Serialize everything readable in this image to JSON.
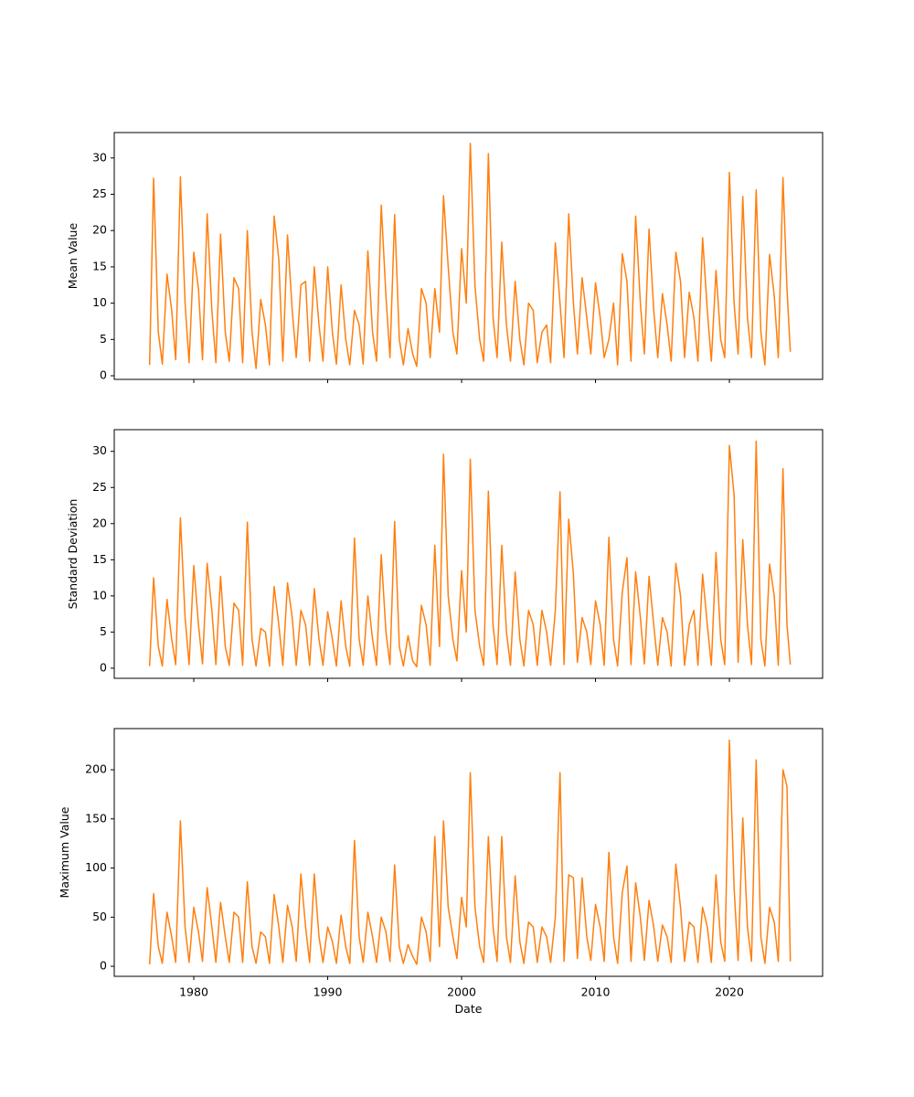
{
  "chart_data": [
    {
      "type": "line",
      "ylabel": "Mean Value",
      "color": "#ff7f0e",
      "xlim": [
        1974.06,
        2026.96
      ],
      "xticks": [
        1980,
        1990,
        2000,
        2010,
        2020
      ],
      "ylim": [
        -0.5,
        33.5
      ],
      "yticks": [
        0,
        5,
        10,
        15,
        20,
        25,
        30
      ],
      "x": [
        1976.7,
        1977,
        1977.35,
        1977.65,
        1978,
        1978.35,
        1978.65,
        1979,
        1979.35,
        1979.65,
        1980,
        1980.35,
        1980.65,
        1981,
        1981.35,
        1981.65,
        1982,
        1982.35,
        1982.65,
        1983,
        1983.35,
        1983.65,
        1984,
        1984.35,
        1984.65,
        1985,
        1985.35,
        1985.65,
        1986,
        1986.35,
        1986.65,
        1987,
        1987.35,
        1987.65,
        1988,
        1988.35,
        1988.65,
        1989,
        1989.35,
        1989.65,
        1990,
        1990.35,
        1990.65,
        1991,
        1991.35,
        1991.65,
        1992,
        1992.35,
        1992.65,
        1993,
        1993.35,
        1993.65,
        1994,
        1994.35,
        1994.65,
        1995,
        1995.35,
        1995.65,
        1996,
        1996.35,
        1996.65,
        1997,
        1997.35,
        1997.65,
        1998,
        1998.35,
        1998.65,
        1999,
        1999.35,
        1999.65,
        2000,
        2000.35,
        2000.65,
        2001,
        2001.35,
        2001.65,
        2002,
        2002.35,
        2002.65,
        2003,
        2003.35,
        2003.65,
        2004,
        2004.35,
        2004.65,
        2005,
        2005.35,
        2005.65,
        2006,
        2006.35,
        2006.65,
        2007,
        2007.35,
        2007.65,
        2008,
        2008.35,
        2008.65,
        2009,
        2009.35,
        2009.65,
        2010,
        2010.35,
        2010.65,
        2011,
        2011.35,
        2011.65,
        2012,
        2012.35,
        2012.65,
        2013,
        2013.35,
        2013.65,
        2014,
        2014.35,
        2014.65,
        2015,
        2015.35,
        2015.65,
        2016,
        2016.35,
        2016.65,
        2017,
        2017.35,
        2017.65,
        2018,
        2018.35,
        2018.65,
        2019,
        2019.35,
        2019.65,
        2020,
        2020.35,
        2020.65,
        2021,
        2021.35,
        2021.65,
        2022,
        2022.35,
        2022.65,
        2023,
        2023.35,
        2023.65,
        2024,
        2024.3,
        2024.55
      ],
      "values": [
        1.5,
        27.2,
        6,
        1.6,
        14,
        9,
        2.2,
        27.4,
        10,
        1.8,
        17,
        12,
        2.2,
        22.3,
        9,
        1.8,
        19.5,
        6,
        2,
        13.5,
        12,
        1.8,
        20,
        6,
        1,
        10.5,
        7,
        1.5,
        22,
        16,
        2,
        19.4,
        9,
        2.5,
        12.5,
        13,
        2,
        15,
        7,
        2,
        15,
        6,
        1.6,
        12.5,
        5,
        1.5,
        9,
        7,
        1.6,
        17.2,
        6,
        2,
        23.5,
        11,
        2.5,
        22.2,
        5,
        1.5,
        6.5,
        3,
        1.3,
        12,
        10,
        2.5,
        12,
        6,
        24.8,
        15,
        6,
        3,
        17.5,
        10,
        32,
        12.3,
        5,
        2,
        30.6,
        8,
        2.5,
        18.4,
        7,
        2,
        13,
        5,
        1.5,
        10,
        9,
        1.8,
        6,
        7,
        1.8,
        18.3,
        10,
        2.5,
        22.3,
        10,
        3,
        13.5,
        8,
        3,
        12.8,
        8,
        2.5,
        5,
        10,
        1.5,
        16.8,
        13,
        2,
        22,
        10,
        3,
        20.2,
        9,
        2.5,
        11.3,
        7,
        2,
        17,
        13,
        2.5,
        11.5,
        8,
        2,
        19,
        9,
        2,
        14.5,
        5,
        2.5,
        28,
        10,
        3,
        24.7,
        8,
        2.5,
        25.6,
        6,
        1.5,
        16.7,
        11,
        2.5,
        27.3,
        12,
        3.3
      ]
    },
    {
      "type": "line",
      "ylabel": "Standard Deviation",
      "color": "#ff7f0e",
      "xlim": [
        1974.06,
        2026.96
      ],
      "xticks": [
        1980,
        1990,
        2000,
        2010,
        2020
      ],
      "ylim": [
        -1.4,
        33.0
      ],
      "yticks": [
        0,
        5,
        10,
        15,
        20,
        25,
        30
      ],
      "x": [
        1976.7,
        1977,
        1977.35,
        1977.65,
        1978,
        1978.35,
        1978.65,
        1979,
        1979.35,
        1979.65,
        1980,
        1980.35,
        1980.65,
        1981,
        1981.35,
        1981.65,
        1982,
        1982.35,
        1982.65,
        1983,
        1983.35,
        1983.65,
        1984,
        1984.35,
        1984.65,
        1985,
        1985.35,
        1985.65,
        1986,
        1986.35,
        1986.65,
        1987,
        1987.35,
        1987.65,
        1988,
        1988.35,
        1988.65,
        1989,
        1989.35,
        1989.65,
        1990,
        1990.35,
        1990.65,
        1991,
        1991.35,
        1991.65,
        1992,
        1992.35,
        1992.65,
        1993,
        1993.35,
        1993.65,
        1994,
        1994.35,
        1994.65,
        1995,
        1995.35,
        1995.65,
        1996,
        1996.35,
        1996.65,
        1997,
        1997.35,
        1997.65,
        1998,
        1998.35,
        1998.65,
        1999,
        1999.35,
        1999.65,
        2000,
        2000.35,
        2000.65,
        2001,
        2001.35,
        2001.65,
        2002,
        2002.35,
        2002.65,
        2003,
        2003.35,
        2003.65,
        2004,
        2004.35,
        2004.65,
        2005,
        2005.35,
        2005.65,
        2006,
        2006.35,
        2006.65,
        2007,
        2007.35,
        2007.65,
        2008,
        2008.35,
        2008.65,
        2009,
        2009.35,
        2009.65,
        2010,
        2010.35,
        2010.65,
        2011,
        2011.35,
        2011.65,
        2012,
        2012.35,
        2012.65,
        2013,
        2013.35,
        2013.65,
        2014,
        2014.35,
        2014.65,
        2015,
        2015.35,
        2015.65,
        2016,
        2016.35,
        2016.65,
        2017,
        2017.35,
        2017.65,
        2018,
        2018.35,
        2018.65,
        2019,
        2019.35,
        2019.65,
        2020,
        2020.35,
        2020.65,
        2021,
        2021.35,
        2021.65,
        2022,
        2022.35,
        2022.65,
        2023,
        2023.35,
        2023.65,
        2024,
        2024.3,
        2024.55
      ],
      "values": [
        0.3,
        12.5,
        3,
        0.3,
        9.5,
        4,
        0.5,
        20.8,
        7,
        0.5,
        14.2,
        6,
        0.6,
        14.5,
        8,
        0.5,
        12.7,
        3,
        0.4,
        9,
        8,
        0.4,
        20.2,
        4,
        0.3,
        5.5,
        5,
        0.3,
        11.3,
        6,
        0.4,
        11.8,
        7,
        0.4,
        8,
        6,
        0.4,
        11,
        4,
        0.4,
        7.8,
        4,
        0.3,
        9.3,
        3,
        0.3,
        18,
        4,
        0.4,
        10,
        4,
        0.4,
        15.7,
        5,
        0.5,
        20.3,
        3,
        0.3,
        4.5,
        1,
        0.2,
        8.7,
        6,
        0.4,
        17,
        3,
        29.6,
        10,
        4,
        1,
        13.5,
        5,
        28.9,
        8,
        3,
        0.4,
        24.5,
        6,
        0.5,
        17,
        5,
        0.4,
        13.3,
        4,
        0.3,
        8,
        6,
        0.4,
        8,
        5,
        0.4,
        8,
        24.4,
        0.5,
        20.6,
        13,
        0.8,
        7,
        5,
        0.5,
        9.3,
        6,
        0.4,
        18.1,
        4,
        0.3,
        10.5,
        15.3,
        0.5,
        13.3,
        7,
        0.6,
        12.7,
        6,
        0.4,
        7,
        5,
        0.3,
        14.5,
        10,
        0.4,
        6,
        8,
        0.4,
        13,
        6,
        0.4,
        16,
        4,
        0.5,
        30.8,
        24,
        0.8,
        17.8,
        6,
        0.5,
        31.4,
        4,
        0.3,
        14.4,
        10,
        0.4,
        27.6,
        6,
        0.5
      ]
    },
    {
      "type": "line",
      "ylabel": "Maximum Value",
      "xlabel": "Date",
      "color": "#ff7f0e",
      "xlim": [
        1974.06,
        2026.96
      ],
      "xticks": [
        1980,
        1990,
        2000,
        2010,
        2020
      ],
      "ylim": [
        -10.2,
        241.9
      ],
      "yticks": [
        0,
        50,
        100,
        150,
        200
      ],
      "x": [
        1976.7,
        1977,
        1977.35,
        1977.65,
        1978,
        1978.35,
        1978.65,
        1979,
        1979.35,
        1979.65,
        1980,
        1980.35,
        1980.65,
        1981,
        1981.35,
        1981.65,
        1982,
        1982.35,
        1982.65,
        1983,
        1983.35,
        1983.65,
        1984,
        1984.35,
        1984.65,
        1985,
        1985.35,
        1985.65,
        1986,
        1986.35,
        1986.65,
        1987,
        1987.35,
        1987.65,
        1988,
        1988.35,
        1988.65,
        1989,
        1989.35,
        1989.65,
        1990,
        1990.35,
        1990.65,
        1991,
        1991.35,
        1991.65,
        1992,
        1992.35,
        1992.65,
        1993,
        1993.35,
        1993.65,
        1994,
        1994.35,
        1994.65,
        1995,
        1995.35,
        1995.65,
        1996,
        1996.35,
        1996.65,
        1997,
        1997.35,
        1997.65,
        1998,
        1998.35,
        1998.65,
        1999,
        1999.35,
        1999.65,
        2000,
        2000.35,
        2000.65,
        2001,
        2001.35,
        2001.65,
        2002,
        2002.35,
        2002.65,
        2003,
        2003.35,
        2003.65,
        2004,
        2004.35,
        2004.65,
        2005,
        2005.35,
        2005.65,
        2006,
        2006.35,
        2006.65,
        2007,
        2007.35,
        2007.65,
        2008,
        2008.35,
        2008.65,
        2009,
        2009.35,
        2009.65,
        2010,
        2010.35,
        2010.65,
        2011,
        2011.35,
        2011.65,
        2012,
        2012.35,
        2012.65,
        2013,
        2013.35,
        2013.65,
        2014,
        2014.35,
        2014.65,
        2015,
        2015.35,
        2015.65,
        2016,
        2016.35,
        2016.65,
        2017,
        2017.35,
        2017.65,
        2018,
        2018.35,
        2018.65,
        2019,
        2019.35,
        2019.65,
        2020,
        2020.35,
        2020.65,
        2021,
        2021.35,
        2021.65,
        2022,
        2022.35,
        2022.65,
        2023,
        2023.35,
        2023.65,
        2024,
        2024.3,
        2024.55
      ],
      "values": [
        2,
        74,
        20,
        3,
        55,
        30,
        4,
        148,
        40,
        4,
        60,
        35,
        5,
        80,
        40,
        4,
        65,
        30,
        4,
        55,
        50,
        4,
        86,
        20,
        3,
        35,
        30,
        3,
        73,
        40,
        4,
        62,
        40,
        5,
        94,
        40,
        4,
        94,
        30,
        4,
        40,
        25,
        3,
        52,
        20,
        3,
        128,
        30,
        4,
        55,
        30,
        4,
        50,
        35,
        5,
        103,
        20,
        3,
        22,
        10,
        2,
        50,
        35,
        5,
        132,
        20,
        148,
        60,
        30,
        8,
        70,
        40,
        197,
        60,
        20,
        4,
        132,
        40,
        5,
        132,
        30,
        4,
        92,
        25,
        3,
        45,
        40,
        4,
        40,
        30,
        4,
        50,
        197,
        5,
        93,
        90,
        8,
        90,
        30,
        6,
        63,
        40,
        5,
        116,
        30,
        3,
        75,
        102,
        5,
        85,
        50,
        6,
        67,
        40,
        5,
        42,
        30,
        4,
        104,
        60,
        5,
        45,
        40,
        4,
        60,
        40,
        4,
        93,
        25,
        5,
        230,
        80,
        6,
        151,
        40,
        5,
        210,
        30,
        3,
        60,
        45,
        5,
        200,
        183,
        5
      ]
    }
  ]
}
